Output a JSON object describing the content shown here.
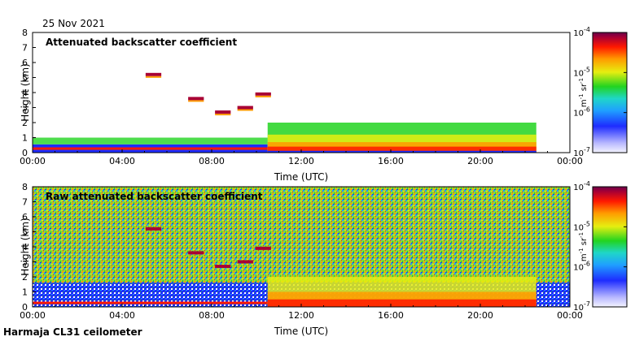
{
  "date_label": "25 Nov 2021",
  "footer_label": "Harmaja CL31 ceilometer",
  "chart_data": [
    {
      "type": "heatmap",
      "title": "Attenuated backscatter coefficient",
      "xlabel": "Time (UTC)",
      "ylabel": "Height (km)",
      "x_ticks": [
        "00:00",
        "04:00",
        "08:00",
        "12:00",
        "16:00",
        "20:00",
        "00:00"
      ],
      "y_ticks": [
        "0",
        "1",
        "2",
        "3",
        "4",
        "5",
        "6",
        "7",
        "8"
      ],
      "xlim_hours": [
        0,
        24
      ],
      "ylim_km": [
        0,
        8
      ],
      "colorbar": {
        "scale": "log",
        "range": [
          1e-07,
          0.0001
        ],
        "tick_labels": [
          "10",
          "10",
          "10",
          "10"
        ],
        "tick_exponents": [
          "-7",
          "-6",
          "-5",
          "-4"
        ],
        "unit_base": "m",
        "unit_exp1": "-1",
        "unit_mid": " sr",
        "unit_exp2": "-1"
      },
      "features": [
        {
          "kind": "boundary_layer",
          "from_h": 0,
          "to_h": 10.5,
          "top_km": 1.0
        },
        {
          "kind": "elevated_layer",
          "h": 5.4,
          "km": 5.2
        },
        {
          "kind": "elevated_layer",
          "h": 7.3,
          "km": 3.6
        },
        {
          "kind": "elevated_layer",
          "h": 8.5,
          "km": 2.7
        },
        {
          "kind": "elevated_layer",
          "h": 9.5,
          "km": 3.0
        },
        {
          "kind": "elevated_layer",
          "h": 10.3,
          "km": 3.9
        },
        {
          "kind": "thick_cloud",
          "from_h": 10.5,
          "to_h": 22.5,
          "top_km": 2.0
        }
      ]
    },
    {
      "type": "heatmap",
      "title": "Raw attenuated backscatter coefficient",
      "xlabel": "Time (UTC)",
      "ylabel": "Height (km)",
      "x_ticks": [
        "00:00",
        "04:00",
        "08:00",
        "12:00",
        "16:00",
        "20:00",
        "00:00"
      ],
      "y_ticks": [
        "0",
        "1",
        "2",
        "3",
        "4",
        "5",
        "6",
        "7",
        "8"
      ],
      "xlim_hours": [
        0,
        24
      ],
      "ylim_km": [
        0,
        8
      ],
      "colorbar": {
        "scale": "log",
        "range": [
          1e-07,
          0.0001
        ],
        "tick_labels": [
          "10",
          "10",
          "10",
          "10"
        ],
        "tick_exponents": [
          "-7",
          "-6",
          "-5",
          "-4"
        ],
        "unit_base": "m",
        "unit_exp1": "-1",
        "unit_mid": " sr",
        "unit_exp2": "-1"
      }
    }
  ]
}
